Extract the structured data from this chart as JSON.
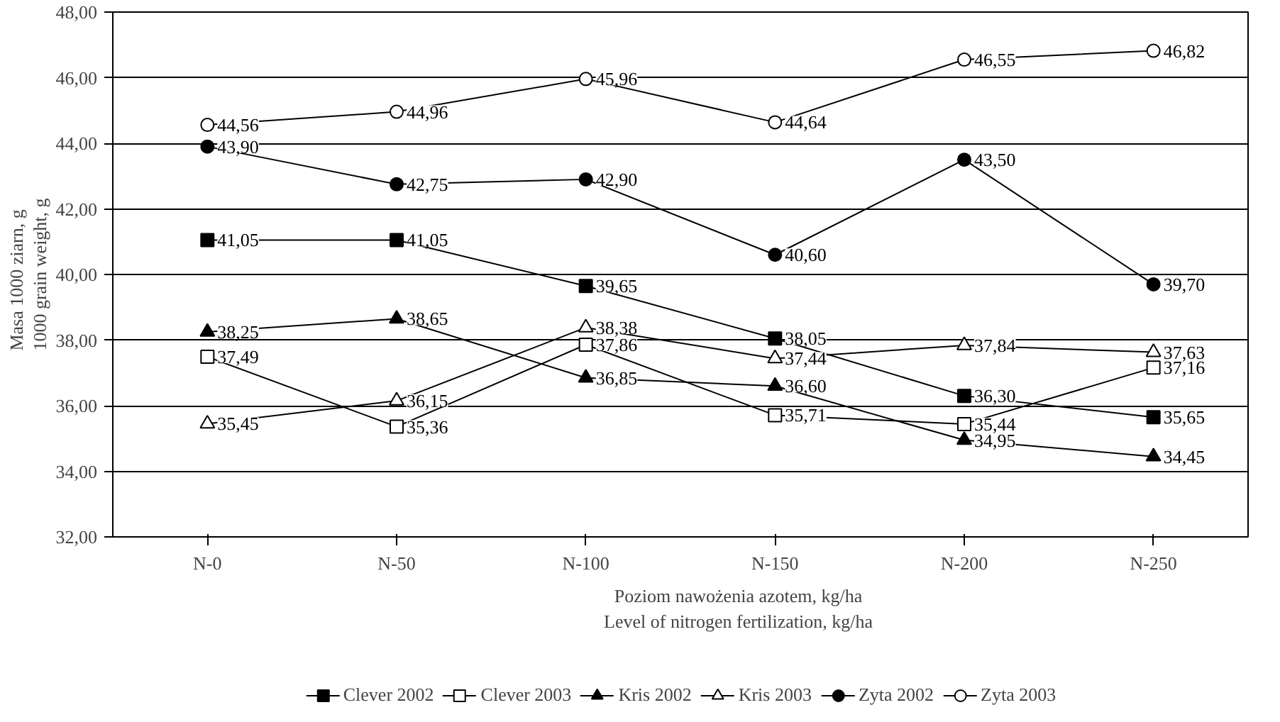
{
  "chart_data": {
    "type": "line",
    "xlabel": "Poziom nawożenia azotem, kg/ha\nLevel of nitrogen fertilization, kg/ha",
    "ylabel": "Masa 1000 ziarn, g\n1000 grain weight, g",
    "categories": [
      "N-0",
      "N-50",
      "N-100",
      "N-150",
      "N-200",
      "N-250"
    ],
    "ylim": [
      32,
      48
    ],
    "yticks": [
      {
        "value": 32,
        "label": "32,00"
      },
      {
        "value": 34,
        "label": "34,00"
      },
      {
        "value": 36,
        "label": "36,00"
      },
      {
        "value": 38,
        "label": "38,00"
      },
      {
        "value": 40,
        "label": "40,00"
      },
      {
        "value": 42,
        "label": "42,00"
      },
      {
        "value": 44,
        "label": "44,00"
      },
      {
        "value": 46,
        "label": "46,00"
      },
      {
        "value": 48,
        "label": "48,00"
      }
    ],
    "grid": "y",
    "legend": "bottom",
    "line_style": "solid",
    "series": [
      {
        "name": "Clever 2002",
        "color": "#000000",
        "marker": "square",
        "colors": [
          "#000000",
          "#000000",
          "#000000",
          "#000000",
          "#000000",
          "#000000"
        ],
        "values": [
          41.05,
          41.05,
          39.65,
          38.05,
          36.3,
          35.65
        ],
        "value_labels": [
          "41,05",
          "41,05",
          "39,65",
          "38,05",
          "36,30",
          "35,65"
        ]
      },
      {
        "name": "Clever 2003",
        "color": "#000000",
        "marker": "square",
        "colors": [
          "#ffffff",
          "#ffffff",
          "#ffffff",
          "#ffffff",
          "#ffffff",
          "#ffffff"
        ],
        "values": [
          37.49,
          35.36,
          37.86,
          35.71,
          35.44,
          37.16
        ],
        "value_labels": [
          "37,49",
          "35,36",
          "37,86",
          "35,71",
          "35,44",
          "37,16"
        ]
      },
      {
        "name": "Kris 2002",
        "color": "#000000",
        "marker": "triangle",
        "colors": [
          "#000000",
          "#000000",
          "#000000",
          "#000000",
          "#000000",
          "#000000"
        ],
        "values": [
          38.25,
          38.65,
          36.85,
          36.6,
          34.95,
          34.45
        ],
        "value_labels": [
          "38,25",
          "38,65",
          "36,85",
          "36,60",
          "34,95",
          "34,45"
        ]
      },
      {
        "name": "Kris 2003",
        "color": "#000000",
        "marker": "triangle",
        "colors": [
          "#ffffff",
          "#ffffff",
          "#ffffff",
          "#ffffff",
          "#ffffff",
          "#ffffff"
        ],
        "values": [
          35.45,
          36.15,
          38.38,
          37.44,
          37.84,
          37.63
        ],
        "value_labels": [
          "35,45",
          "36,15",
          "38,38",
          "37,44",
          "37,84",
          "37,63"
        ]
      },
      {
        "name": "Zyta 2002",
        "color": "#000000",
        "marker": "circle",
        "colors": [
          "#000000",
          "#000000",
          "#000000",
          "#000000",
          "#000000",
          "#000000"
        ],
        "values": [
          43.9,
          42.75,
          42.9,
          40.6,
          43.5,
          39.7
        ],
        "value_labels": [
          "43,90",
          "42,75",
          "42,90",
          "40,60",
          "43,50",
          "39,70"
        ]
      },
      {
        "name": "Zyta 2003",
        "color": "#000000",
        "marker": "circle",
        "colors": [
          "#ffffff",
          "#ffffff",
          "#ffffff",
          "#ffffff",
          "#ffffff",
          "#ffffff"
        ],
        "values": [
          44.56,
          44.96,
          45.96,
          44.64,
          46.55,
          46.82
        ],
        "value_labels": [
          "44,56",
          "44,96",
          "45,96",
          "44,64",
          "46,55",
          "46,82"
        ]
      }
    ]
  }
}
